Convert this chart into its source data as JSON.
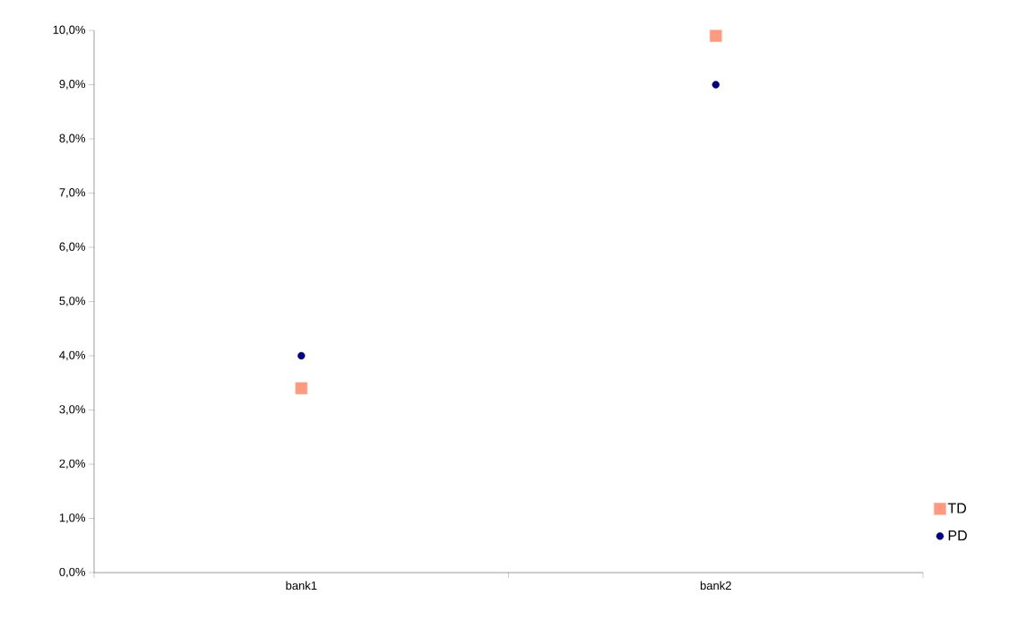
{
  "chart_data": {
    "type": "scatter",
    "categories": [
      "bank1",
      "bank2"
    ],
    "series": [
      {
        "name": "TD",
        "color": "#ff9980",
        "marker": "square",
        "values": [
          3.4,
          9.9
        ]
      },
      {
        "name": "PD",
        "color": "#000080",
        "marker": "circle",
        "values": [
          4.0,
          9.0
        ]
      }
    ],
    "ylim": [
      0,
      10
    ],
    "yticks": [
      {
        "value": 0,
        "label": "0,0%"
      },
      {
        "value": 1,
        "label": "1,0%"
      },
      {
        "value": 2,
        "label": "2,0%"
      },
      {
        "value": 3,
        "label": "3,0%"
      },
      {
        "value": 4,
        "label": "4,0%"
      },
      {
        "value": 5,
        "label": "5,0%"
      },
      {
        "value": 6,
        "label": "6,0%"
      },
      {
        "value": 7,
        "label": "7,0%"
      },
      {
        "value": 8,
        "label": "8,0%"
      },
      {
        "value": 9,
        "label": "9,0%"
      },
      {
        "value": 10,
        "label": "10,0%"
      }
    ],
    "grid": false,
    "legend": "right"
  }
}
